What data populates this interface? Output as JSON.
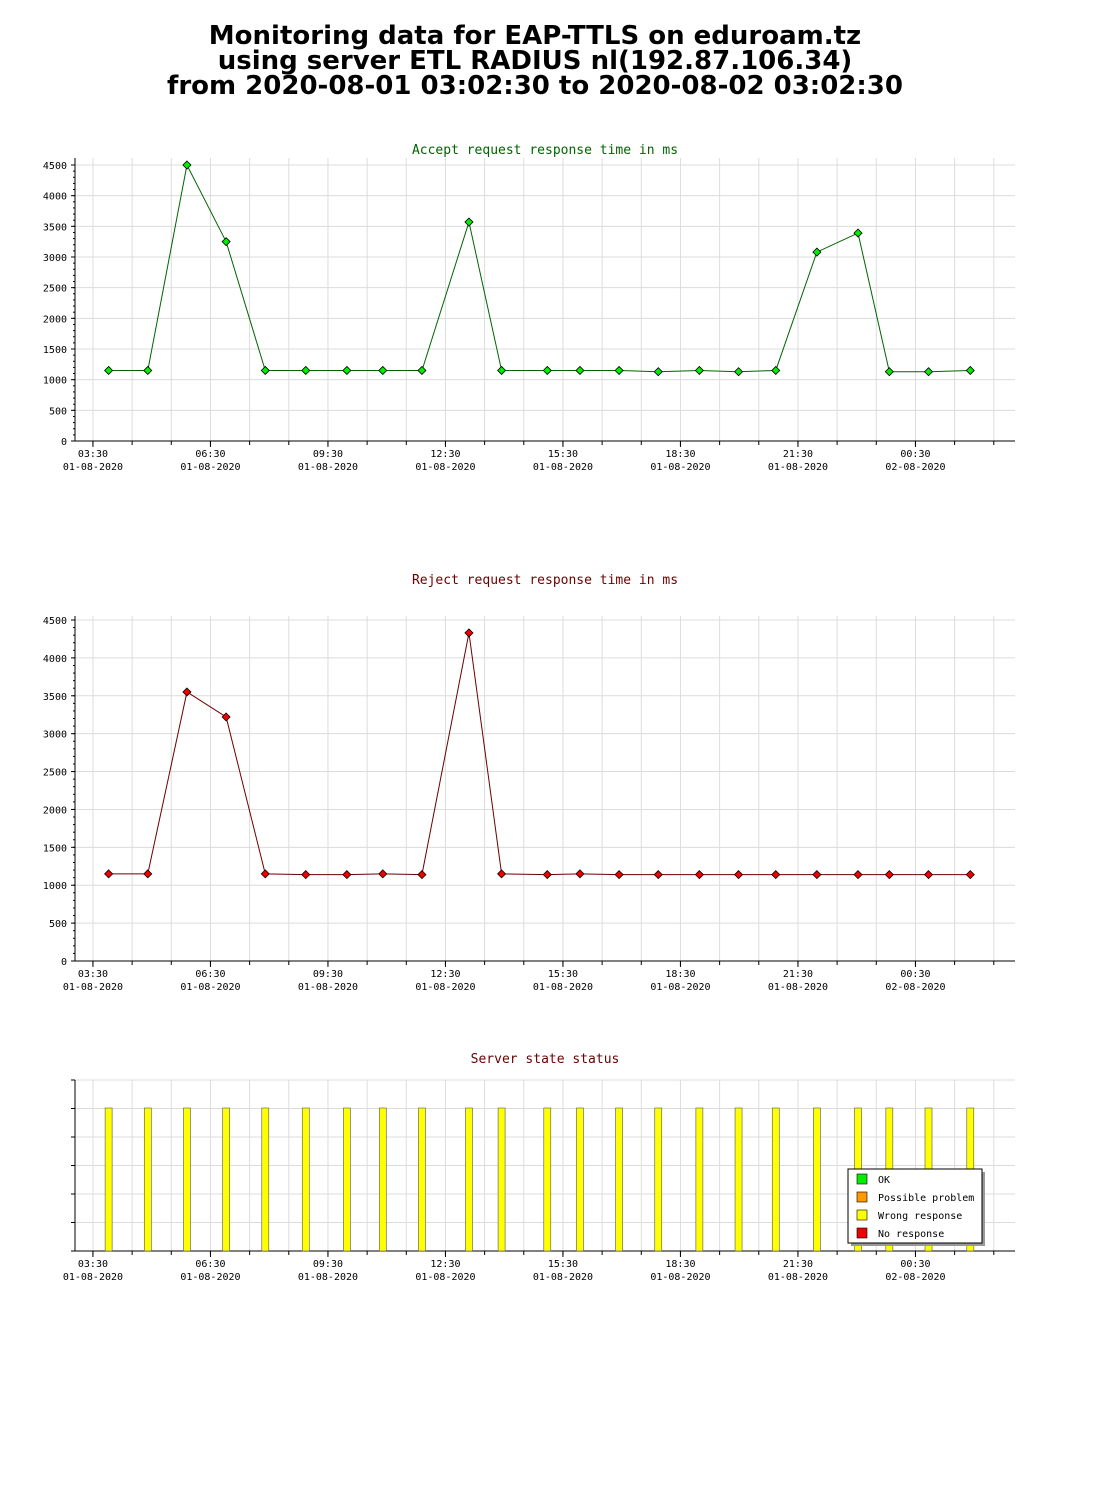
{
  "page": {
    "title_lines": [
      "Monitoring data for EAP-TTLS on eduroam.tz",
      "using server ETL RADIUS nl(192.87.106.34)",
      "from 2020-08-01 03:02:30 to 2020-08-02 03:02:30"
    ]
  },
  "colors": {
    "grid": "#dcdcdc",
    "axis": "#000000",
    "accept_title": "#006400",
    "accept_line": "#006400",
    "accept_marker": "#00ee00",
    "reject_title": "#6b0000",
    "reject_line": "#6b0000",
    "reject_marker": "#ee0000",
    "status_title": "#6b0000",
    "status_bar": "#ffff00",
    "status_bar_stroke": "#555555"
  },
  "chart_data": [
    {
      "id": "accept",
      "type": "line",
      "title": "Accept request response time in ms",
      "xlabel": "",
      "ylabel": "",
      "x_range": [
        "2020-08-01 03:02:30",
        "2020-08-02 03:02:30"
      ],
      "ylim": [
        0,
        4500
      ],
      "yticks": [
        0,
        500,
        1000,
        1500,
        2000,
        2500,
        3000,
        3500,
        4000,
        4500
      ],
      "xtick_labels": [
        {
          "time": "03:30",
          "date": "01-08-2020"
        },
        {
          "time": "06:30",
          "date": "01-08-2020"
        },
        {
          "time": "09:30",
          "date": "01-08-2020"
        },
        {
          "time": "12:30",
          "date": "01-08-2020"
        },
        {
          "time": "15:30",
          "date": "01-08-2020"
        },
        {
          "time": "18:30",
          "date": "01-08-2020"
        },
        {
          "time": "21:30",
          "date": "01-08-2020"
        },
        {
          "time": "00:30",
          "date": "02-08-2020"
        }
      ],
      "grid": true,
      "series": [
        {
          "x": [
            "2020-08-01 03:54",
            "2020-08-01 04:54",
            "2020-08-01 05:54",
            "2020-08-01 06:54",
            "2020-08-01 07:54",
            "2020-08-01 08:56",
            "2020-08-01 09:59",
            "2020-08-01 10:54",
            "2020-08-01 11:54",
            "2020-08-01 13:06",
            "2020-08-01 13:56",
            "2020-08-01 15:06",
            "2020-08-01 15:56",
            "2020-08-01 16:56",
            "2020-08-01 17:56",
            "2020-08-01 18:59",
            "2020-08-01 19:59",
            "2020-08-01 20:56",
            "2020-08-01 21:59",
            "2020-08-01 23:02",
            "2020-08-01 23:50",
            "2020-08-02 00:50",
            "2020-08-02 01:54"
          ],
          "values": [
            1150,
            1150,
            4500,
            3250,
            1150,
            1150,
            1150,
            1150,
            1150,
            3570,
            1150,
            1150,
            1150,
            1150,
            1130,
            1150,
            1130,
            1150,
            3080,
            3390,
            1130,
            1130,
            1150
          ]
        }
      ]
    },
    {
      "id": "reject",
      "type": "line",
      "title": "Reject request response time in ms",
      "xlabel": "",
      "ylabel": "",
      "x_range": [
        "2020-08-01 03:02:30",
        "2020-08-02 03:02:30"
      ],
      "ylim": [
        0,
        4500
      ],
      "yticks": [
        0,
        500,
        1000,
        1500,
        2000,
        2500,
        3000,
        3500,
        4000,
        4500
      ],
      "xtick_labels": [
        {
          "time": "03:30",
          "date": "01-08-2020"
        },
        {
          "time": "06:30",
          "date": "01-08-2020"
        },
        {
          "time": "09:30",
          "date": "01-08-2020"
        },
        {
          "time": "12:30",
          "date": "01-08-2020"
        },
        {
          "time": "15:30",
          "date": "01-08-2020"
        },
        {
          "time": "18:30",
          "date": "01-08-2020"
        },
        {
          "time": "21:30",
          "date": "01-08-2020"
        },
        {
          "time": "00:30",
          "date": "02-08-2020"
        }
      ],
      "grid": true,
      "series": [
        {
          "x": [
            "2020-08-01 03:54",
            "2020-08-01 04:54",
            "2020-08-01 05:54",
            "2020-08-01 06:54",
            "2020-08-01 07:54",
            "2020-08-01 08:56",
            "2020-08-01 09:59",
            "2020-08-01 10:54",
            "2020-08-01 11:54",
            "2020-08-01 13:06",
            "2020-08-01 13:56",
            "2020-08-01 15:06",
            "2020-08-01 15:56",
            "2020-08-01 16:56",
            "2020-08-01 17:56",
            "2020-08-01 18:59",
            "2020-08-01 19:59",
            "2020-08-01 20:56",
            "2020-08-01 21:59",
            "2020-08-01 23:02",
            "2020-08-01 23:50",
            "2020-08-02 00:50",
            "2020-08-02 01:54"
          ],
          "values": [
            1150,
            1150,
            3550,
            3220,
            1150,
            1140,
            1140,
            1150,
            1140,
            4330,
            1150,
            1140,
            1150,
            1140,
            1140,
            1140,
            1140,
            1140,
            1140,
            1140,
            1140,
            1140,
            1140
          ]
        }
      ]
    },
    {
      "id": "status",
      "type": "bar",
      "title": "Server state status",
      "xlabel": "",
      "ylabel": "",
      "x_range": [
        "2020-08-01 03:02:30",
        "2020-08-02 03:02:30"
      ],
      "xtick_labels": [
        {
          "time": "03:30",
          "date": "01-08-2020"
        },
        {
          "time": "06:30",
          "date": "01-08-2020"
        },
        {
          "time": "09:30",
          "date": "01-08-2020"
        },
        {
          "time": "12:30",
          "date": "01-08-2020"
        },
        {
          "time": "15:30",
          "date": "01-08-2020"
        },
        {
          "time": "18:30",
          "date": "01-08-2020"
        },
        {
          "time": "21:30",
          "date": "01-08-2020"
        },
        {
          "time": "00:30",
          "date": "02-08-2020"
        }
      ],
      "grid": true,
      "legend_position": "bottom-right",
      "legend": [
        {
          "label": "OK",
          "color": "#00ee00"
        },
        {
          "label": "Possible problem",
          "color": "#ff9900"
        },
        {
          "label": "Wrong response",
          "color": "#ffff00"
        },
        {
          "label": "No response",
          "color": "#ee0000"
        }
      ],
      "series": [
        {
          "name": "Wrong response",
          "x": [
            "2020-08-01 03:54",
            "2020-08-01 04:54",
            "2020-08-01 05:54",
            "2020-08-01 06:54",
            "2020-08-01 07:54",
            "2020-08-01 08:56",
            "2020-08-01 09:59",
            "2020-08-01 10:54",
            "2020-08-01 11:54",
            "2020-08-01 13:06",
            "2020-08-01 13:56",
            "2020-08-01 15:06",
            "2020-08-01 15:56",
            "2020-08-01 16:56",
            "2020-08-01 17:56",
            "2020-08-01 18:59",
            "2020-08-01 19:59",
            "2020-08-01 20:56",
            "2020-08-01 21:59",
            "2020-08-01 23:02",
            "2020-08-01 23:50",
            "2020-08-02 00:50",
            "2020-08-02 01:54"
          ],
          "values": [
            1,
            1,
            1,
            1,
            1,
            1,
            1,
            1,
            1,
            1,
            1,
            1,
            1,
            1,
            1,
            1,
            1,
            1,
            1,
            1,
            1,
            1,
            1
          ]
        }
      ]
    }
  ]
}
